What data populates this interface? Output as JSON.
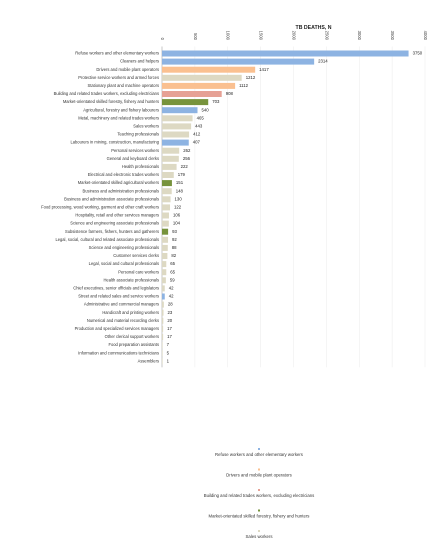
{
  "chart_data": {
    "type": "bar",
    "orientation": "horizontal",
    "title": "",
    "xlabel": "TB DEATHS, N",
    "ylabel": "",
    "xlim": [
      0,
      4000
    ],
    "xticks": [
      0,
      500,
      1000,
      1500,
      2000,
      2500,
      3000,
      3500,
      4000
    ],
    "grid": true,
    "legend_position": "bottom",
    "colors": {
      "blue": "#8db3e2",
      "orange": "#fac090",
      "beige": "#ddd9c3",
      "red": "#e6a195",
      "green": "#77933c"
    },
    "categories": [
      "Refuse workers and other elementary workers",
      "Cleaners and helpers",
      "Drivers and mobile plant operators",
      "Protective service workers and armed forces",
      "Stationary plant and machine operators",
      "Building and related trades workers, excluding electricians",
      "Market-orientated skilled forestry, fishery and hunters",
      "Agricultural, forestry and fishery labourers",
      "Metal, machinery and related trades workers",
      "Sales workers",
      "Teaching professionals",
      "Labourers in mining, construction, manufacturing",
      "Personal services workers",
      "General and keyboard clerks",
      "Health professionals",
      "Electrical and electronic trades workers",
      "Market-orientated skilled agricultural workers",
      "Business and administration professionals",
      "Business and administration associate professionals",
      "Food processing, wood working, garment and other craft workers",
      "Hospitality, retail and other services managers",
      "Science and engineering associate professionals",
      "Subsistence farmers, fishers, hunters and gatherers",
      "Legal, social, cultural and related associate professionals",
      "Science and engineering professionals",
      "Customer services clerks",
      "Legal, social and cultural professionals",
      "Personal care workers",
      "Health associate professionals",
      "Chief executives, senior officials and legislators",
      "Street and related sales and service workers",
      "Administrative and commercial managers",
      "Handicraft and printing workers",
      "Numerical and material recording clerks",
      "Production and specialized services managers",
      "Other clerical support workers",
      "Food preparation assistants",
      "Information and communications technicians",
      "Assemblers"
    ],
    "values": [
      3750,
      2314,
      1417,
      1212,
      1112,
      908,
      703,
      540,
      465,
      443,
      412,
      407,
      262,
      256,
      222,
      179,
      151,
      148,
      130,
      122,
      106,
      104,
      93,
      92,
      88,
      82,
      65,
      65,
      59,
      42,
      42,
      28,
      23,
      20,
      17,
      17,
      7,
      5,
      1
    ],
    "bar_colors": [
      "blue",
      "blue",
      "orange",
      "beige",
      "orange",
      "red",
      "green",
      "blue",
      "beige",
      "beige",
      "beige",
      "blue",
      "beige",
      "beige",
      "beige",
      "beige",
      "green",
      "beige",
      "beige",
      "beige",
      "beige",
      "beige",
      "green",
      "beige",
      "beige",
      "beige",
      "beige",
      "beige",
      "beige",
      "beige",
      "blue",
      "beige",
      "beige",
      "beige",
      "beige",
      "beige",
      "beige",
      "beige",
      "beige"
    ],
    "legend": [
      {
        "label": "Refuse workers and other elementary workers",
        "color": "blue"
      },
      {
        "label": "Drivers and mobile plant operators",
        "color": "orange"
      },
      {
        "label": "Building and related trades workers, excluding electricians",
        "color": "red"
      },
      {
        "label": "Market-orientated skilled forestry, fishery and hunters",
        "color": "green"
      },
      {
        "label": "Sales workers",
        "color": "beige"
      }
    ]
  }
}
